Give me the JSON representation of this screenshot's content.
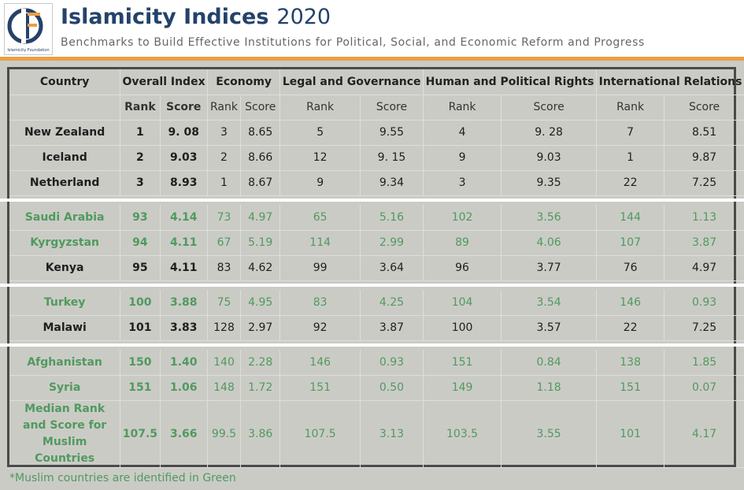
{
  "header": {
    "logo_text": "Islamicity Foundation",
    "title": "Islamicity Indices",
    "year": "2020",
    "subtitle": "Benchmarks to Build Effective Institutions for Political, Social, and Economic Reform and Progress"
  },
  "colors": {
    "muslim": "#4f9a5e",
    "non_muslim": "#1e1e1e",
    "accent": "#e8a046",
    "title": "#24426a"
  },
  "table": {
    "headers": [
      "Country",
      "Overall Index",
      "Economy",
      "Legal and Governance",
      "Human and Political Rights",
      "International Relations"
    ],
    "subheaders": [
      "Rank",
      "Score",
      "Rank",
      "Score",
      "Rank",
      "Score",
      "Rank",
      "Score",
      "Rank",
      "Score"
    ],
    "groups": [
      [
        {
          "country": "New Zealand",
          "muslim": false,
          "values": [
            "1",
            "9. 08",
            "3",
            "8.65",
            "5",
            "9.55",
            "4",
            "9. 28",
            "7",
            "8.51"
          ]
        },
        {
          "country": "Iceland",
          "muslim": false,
          "values": [
            "2",
            "9.03",
            "2",
            "8.66",
            "12",
            "9. 15",
            "9",
            "9.03",
            "1",
            "9.87"
          ]
        },
        {
          "country": "Netherland",
          "muslim": false,
          "values": [
            "3",
            "8.93",
            "1",
            "8.67",
            "9",
            "9.34",
            "3",
            "9.35",
            "22",
            "7.25"
          ]
        }
      ],
      [
        {
          "country": "Saudi Arabia",
          "muslim": true,
          "values": [
            "93",
            "4.14",
            "73",
            "4.97",
            "65",
            "5.16",
            "102",
            "3.56",
            "144",
            "1.13"
          ]
        },
        {
          "country": "Kyrgyzstan",
          "muslim": true,
          "values": [
            "94",
            "4.11",
            "67",
            "5.19",
            "114",
            "2.99",
            "89",
            "4.06",
            "107",
            "3.87"
          ]
        },
        {
          "country": "Kenya",
          "muslim": false,
          "values": [
            "95",
            "4.11",
            "83",
            "4.62",
            "99",
            "3.64",
            "96",
            "3.77",
            "76",
            "4.97"
          ]
        }
      ],
      [
        {
          "country": "Turkey",
          "muslim": true,
          "values": [
            "100",
            "3.88",
            "75",
            "4.95",
            "83",
            "4.25",
            "104",
            "3.54",
            "146",
            "0.93"
          ]
        },
        {
          "country": "Malawi",
          "muslim": false,
          "values": [
            "101",
            "3.83",
            "128",
            "2.97",
            "92",
            "3.87",
            "100",
            "3.57",
            "22",
            "7.25"
          ]
        }
      ],
      [
        {
          "country": "Afghanistan",
          "muslim": true,
          "values": [
            "150",
            "1.40",
            "140",
            "2.28",
            "146",
            "0.93",
            "151",
            "0.84",
            "138",
            "1.85"
          ]
        },
        {
          "country": "Syria",
          "muslim": true,
          "values": [
            "151",
            "1.06",
            "148",
            "1.72",
            "151",
            "0.50",
            "149",
            "1.18",
            "151",
            "0.07"
          ]
        },
        {
          "country": "Median Rank and Score for Muslim Countries",
          "muslim": true,
          "median": true,
          "values": [
            "107.5",
            "3.66",
            "99.5",
            "3.86",
            "107.5",
            "3.13",
            "103.5",
            "3.55",
            "101",
            "4.17"
          ]
        }
      ]
    ]
  },
  "footnote": "*Muslim countries are identified in Green"
}
